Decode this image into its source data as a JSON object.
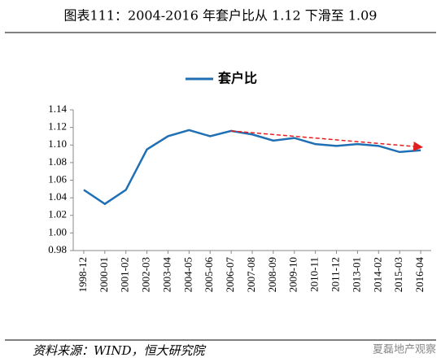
{
  "chart_data": {
    "type": "line",
    "title": "图表111：2004-2016 年套户比从 1.12 下滑至 1.09",
    "source": "资料来源：WIND，恒大研究院",
    "watermark": "夏磊地产观察",
    "categories": [
      "1998-12",
      "2000-01",
      "2001-02",
      "2002-03",
      "2003-04",
      "2004-05",
      "2005-06",
      "2006-07",
      "2007-08",
      "2008-09",
      "2009-10",
      "2010-11",
      "2011-12",
      "2013-01",
      "2014-02",
      "2015-03",
      "2016-04"
    ],
    "series": [
      {
        "name": "套户比",
        "color": "#1f6fb5",
        "values": [
          1.049,
          1.033,
          1.049,
          1.095,
          1.11,
          1.117,
          1.11,
          1.116,
          1.112,
          1.105,
          1.108,
          1.101,
          1.099,
          1.101,
          1.099,
          1.092,
          1.094
        ]
      }
    ],
    "ylim": [
      0.98,
      1.14
    ],
    "yticks": [
      0.98,
      {
        "value": 1.0,
        "label": "1.00"
      },
      1.02,
      1.04,
      1.06,
      1.08,
      {
        "value": 1.1,
        "label": "1.10"
      },
      1.12,
      1.14
    ],
    "legend": "top",
    "grid": false
  }
}
